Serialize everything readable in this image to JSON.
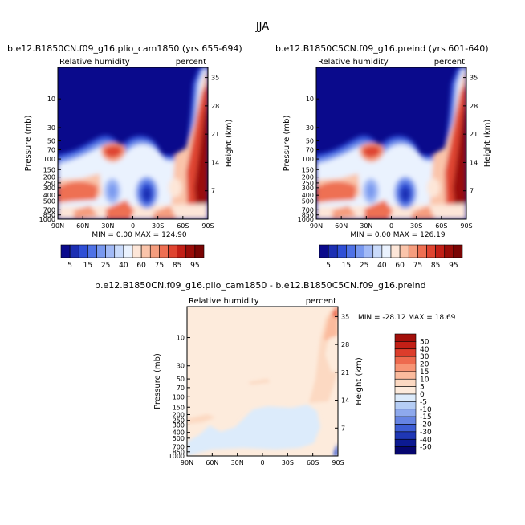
{
  "suptitle": "JJA",
  "colors": {
    "deepblue": "#0a0a8c",
    "darkred": "#7a0403"
  },
  "panels": [
    {
      "title": "b.e12.B1850CN.f09_g16.plio_cam1850 (yrs 655-694)",
      "left_label": "Relative humidity",
      "right_label": "percent",
      "ylabel": "Pressure (mb)",
      "y2label": "Height (km)",
      "minmax": "MIN =    0.00   MAX =  124.90"
    },
    {
      "title": "b.e12.B1850C5CN.f09_g16.preind (yrs 601-640)",
      "left_label": "Relative humidity",
      "right_label": "percent",
      "ylabel": "Pressure (mb)",
      "y2label": "Height (km)",
      "minmax": "MIN =    0.00   MAX =  126.19"
    },
    {
      "title": "b.e12.B1850CN.f09_g16.plio_cam1850 - b.e12.B1850C5CN.f09_g16.preind",
      "left_label": "Relative humidity",
      "right_label": "percent",
      "ylabel": "Pressure (mb)",
      "y2label": "Height (km)",
      "minmax": "MIN = -28.12   MAX =  18.69"
    }
  ],
  "chart_data": [
    {
      "type": "heatmap",
      "subtype": "latitude-pressure contour",
      "title": "b.e12.B1850CN.f09_g16.plio_cam1850 (yrs 655-694)",
      "variable": "Relative humidity",
      "units": "percent",
      "xlabel": "",
      "ylabel": "Pressure (mb)",
      "y2label": "Height (km)",
      "x_ticks": [
        "90N",
        "60N",
        "30N",
        "0",
        "30S",
        "60S",
        "90S"
      ],
      "y_ticks": [
        "10",
        "30",
        "50",
        "70",
        "100",
        "150",
        "200",
        "250",
        "300",
        "400",
        "500",
        "700",
        "850",
        "1000"
      ],
      "y2_ticks": [
        "35",
        "28",
        "21",
        "14",
        "7"
      ],
      "y_scale": "log",
      "ylim": [
        1000,
        3
      ],
      "min": 0.0,
      "max": 124.9,
      "colorbar_levels": [
        "5",
        "15",
        "25",
        "40",
        "60",
        "75",
        "85",
        "95"
      ]
    },
    {
      "type": "heatmap",
      "subtype": "latitude-pressure contour",
      "title": "b.e12.B1850C5CN.f09_g16.preind (yrs 601-640)",
      "variable": "Relative humidity",
      "units": "percent",
      "xlabel": "",
      "ylabel": "Pressure (mb)",
      "y2label": "Height (km)",
      "x_ticks": [
        "90N",
        "60N",
        "30N",
        "0",
        "30S",
        "60S",
        "90S"
      ],
      "y_ticks": [
        "10",
        "30",
        "50",
        "70",
        "100",
        "150",
        "200",
        "250",
        "300",
        "400",
        "500",
        "700",
        "850",
        "1000"
      ],
      "y2_ticks": [
        "35",
        "28",
        "21",
        "14",
        "7"
      ],
      "y_scale": "log",
      "ylim": [
        1000,
        3
      ],
      "min": 0.0,
      "max": 126.19,
      "colorbar_levels": [
        "5",
        "15",
        "25",
        "40",
        "60",
        "75",
        "85",
        "95"
      ]
    },
    {
      "type": "heatmap",
      "subtype": "latitude-pressure contour (difference)",
      "title": "b.e12.B1850CN.f09_g16.plio_cam1850 - b.e12.B1850C5CN.f09_g16.preind",
      "variable": "Relative humidity",
      "units": "percent",
      "xlabel": "",
      "ylabel": "Pressure (mb)",
      "y2label": "Height (km)",
      "x_ticks": [
        "90N",
        "60N",
        "30N",
        "0",
        "30S",
        "60S",
        "90S"
      ],
      "y_ticks": [
        "10",
        "30",
        "50",
        "70",
        "100",
        "150",
        "200",
        "250",
        "300",
        "400",
        "500",
        "700",
        "850",
        "1000"
      ],
      "y2_ticks": [
        "35",
        "28",
        "21",
        "14",
        "7"
      ],
      "y_scale": "log",
      "ylim": [
        1000,
        3
      ],
      "min": -28.12,
      "max": 18.69,
      "colorbar_levels": [
        "50",
        "40",
        "30",
        "20",
        "15",
        "10",
        "5",
        "0",
        "-5",
        "-10",
        "-15",
        "-20",
        "-30",
        "-40",
        "-50"
      ]
    }
  ],
  "colorbar_main": {
    "colors": [
      "#0a0a8c",
      "#1c2fb3",
      "#2f4fd6",
      "#4f72e6",
      "#7898ef",
      "#a2baf6",
      "#cadbfb",
      "#eaf2fe",
      "#fde6d8",
      "#fac4aa",
      "#f59d7e",
      "#ee6f52",
      "#df4430",
      "#c21f16",
      "#9a0c08",
      "#7a0403"
    ]
  },
  "colorbar_diff": {
    "colors": [
      "#a30f0a",
      "#c21f16",
      "#dc3d2b",
      "#ee6a4e",
      "#f79474",
      "#fbbb9d",
      "#fcd9c2",
      "#fdebdc",
      "#dcebfb",
      "#b5cdf5",
      "#8ea9ed",
      "#6684e3",
      "#3d5dd4",
      "#1f37b5",
      "#0c1a92",
      "#06066f"
    ]
  }
}
